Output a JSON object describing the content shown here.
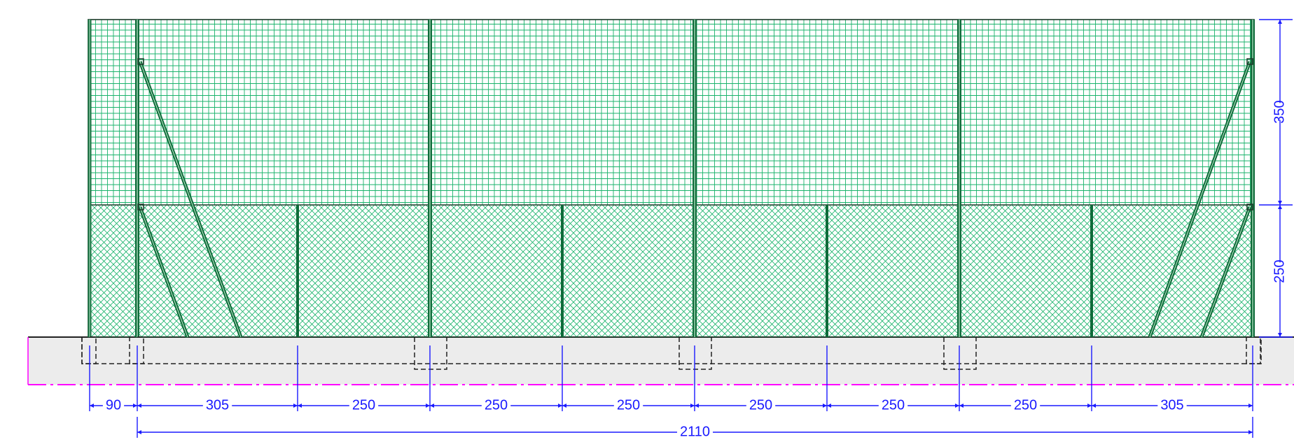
{
  "drawing": {
    "colors": {
      "mesh": "#19b36b",
      "post": "#0f6b3a",
      "outline": "#1e3a2a",
      "ground_fill": "#ececec",
      "footing": "#222222",
      "dimension": "#1a1aff",
      "axis": "#ff00ff"
    },
    "horizontal_dimensions": {
      "segments": [
        "90",
        "305",
        "250",
        "250",
        "250",
        "250",
        "250",
        "250",
        "305"
      ],
      "total": "2110"
    },
    "vertical_dimensions": {
      "upper": "350",
      "lower": "250"
    }
  }
}
